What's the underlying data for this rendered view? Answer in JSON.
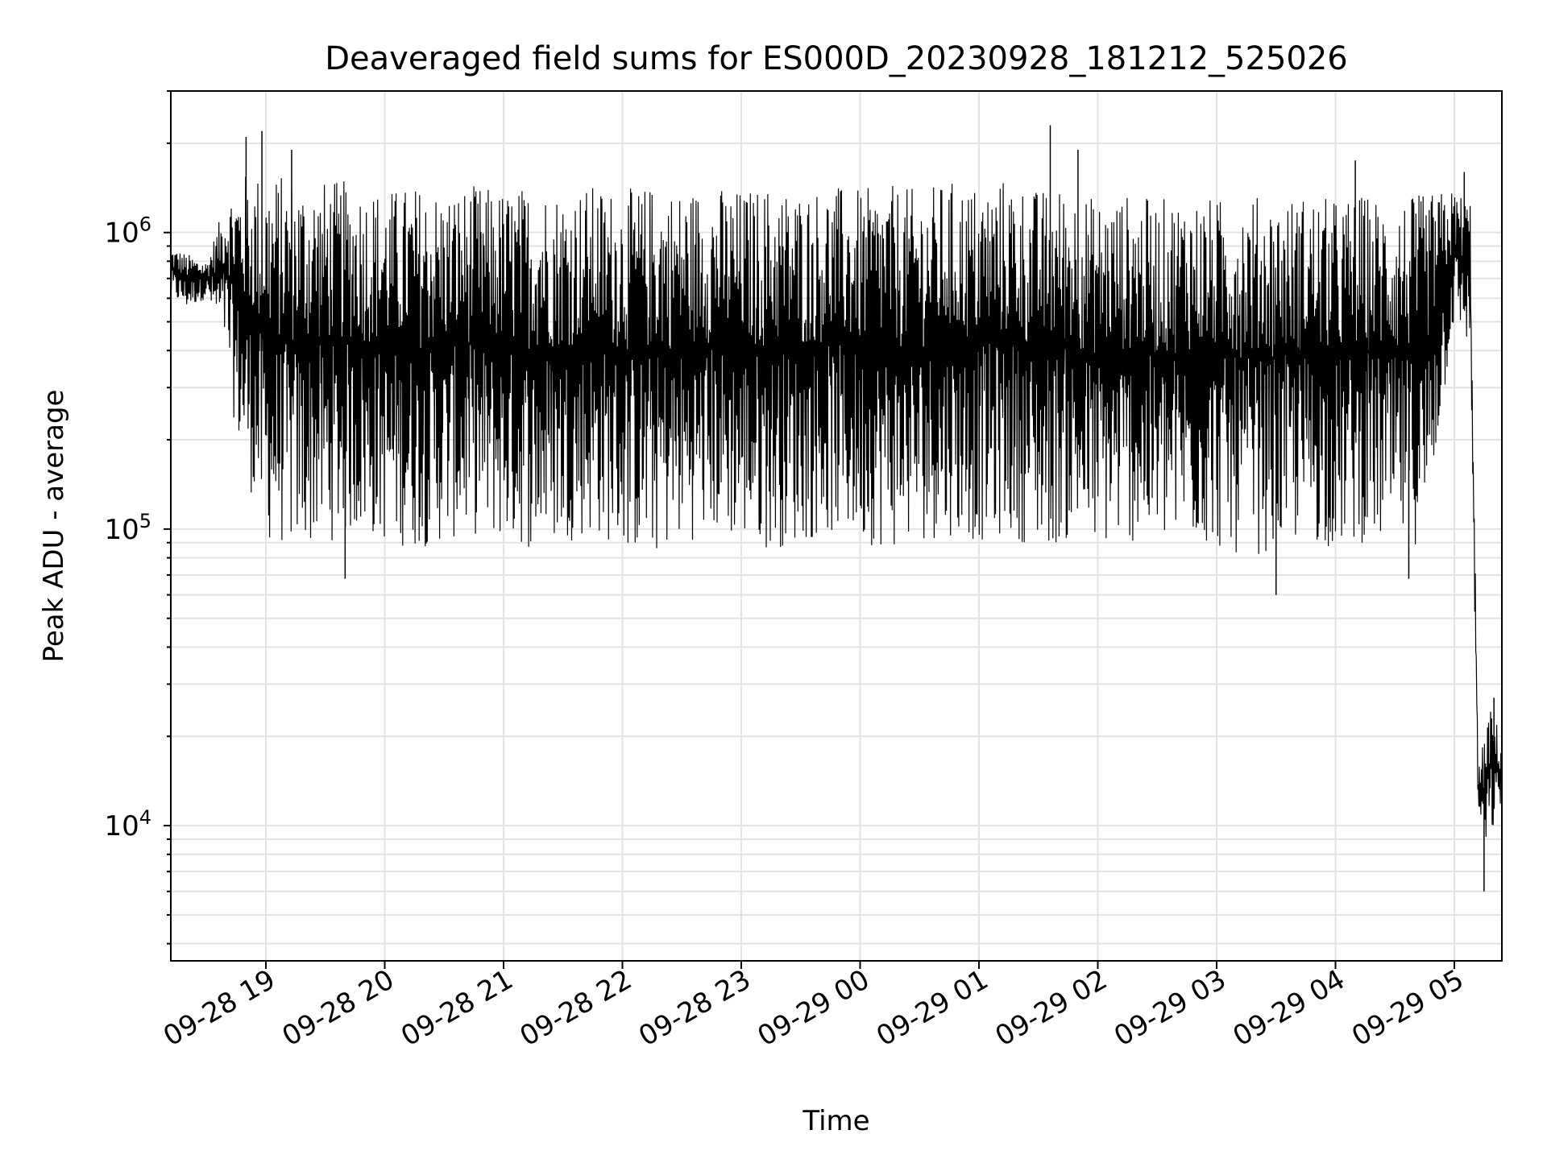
{
  "chart_data": {
    "type": "line",
    "title": "Deaveraged field sums for ES000D_20230928_181212_525026",
    "xlabel": "Time",
    "ylabel": "Peak ADU - average",
    "yscale": "log",
    "ylim": [
      3500,
      3000000
    ],
    "xlim": [
      "2023-09-28 18:12",
      "2023-09-29 05:24"
    ],
    "x_ticks": [
      "09-28 19",
      "09-28 20",
      "09-28 21",
      "09-28 22",
      "09-28 23",
      "09-29 00",
      "09-29 01",
      "09-29 02",
      "09-29 03",
      "09-29 04",
      "09-29 05"
    ],
    "y_ticks": [
      {
        "value": 10000,
        "base": "10",
        "exp": "4"
      },
      {
        "value": 100000,
        "base": "10",
        "exp": "5"
      },
      {
        "value": 1000000,
        "base": "10",
        "exp": "6"
      }
    ],
    "grid": true,
    "line_color": "#000000",
    "series": [
      {
        "x": [
          "2023-09-28 18:12",
          "2023-09-28 18:20",
          "2023-09-28 18:30",
          "2023-09-28 18:40",
          "2023-09-28 18:45",
          "2023-09-28 18:50",
          "2023-09-28 19:00",
          "2023-09-28 19:15",
          "2023-09-28 19:30",
          "2023-09-28 19:45",
          "2023-09-28 20:00",
          "2023-09-28 20:15",
          "2023-09-28 20:30",
          "2023-09-28 20:45",
          "2023-09-28 21:00",
          "2023-09-28 21:15",
          "2023-09-28 21:30",
          "2023-09-28 21:45",
          "2023-09-28 22:00",
          "2023-09-28 22:15",
          "2023-09-28 22:30",
          "2023-09-28 22:45",
          "2023-09-28 23:00",
          "2023-09-28 23:15",
          "2023-09-28 23:30",
          "2023-09-28 23:45",
          "2023-09-29 00:00",
          "2023-09-29 00:15",
          "2023-09-29 00:30",
          "2023-09-29 00:45",
          "2023-09-29 01:00",
          "2023-09-29 01:15",
          "2023-09-29 01:30",
          "2023-09-29 01:45",
          "2023-09-29 02:00",
          "2023-09-29 02:15",
          "2023-09-29 02:30",
          "2023-09-29 02:45",
          "2023-09-29 03:00",
          "2023-09-29 03:15",
          "2023-09-29 03:30",
          "2023-09-29 03:45",
          "2023-09-29 04:00",
          "2023-09-29 04:15",
          "2023-09-29 04:30",
          "2023-09-29 04:45",
          "2023-09-29 05:00",
          "2023-09-29 05:08",
          "2023-09-29 05:12",
          "2023-09-29 05:15",
          "2023-09-29 05:18",
          "2023-09-29 05:21",
          "2023-09-29 05:24"
        ],
        "low": [
          600000,
          550000,
          600000,
          400000,
          200000,
          150000,
          90000,
          85000,
          90000,
          95000,
          90000,
          85000,
          90000,
          95000,
          90000,
          85000,
          90000,
          95000,
          85000,
          80000,
          90000,
          95000,
          90000,
          85000,
          90000,
          95000,
          90000,
          85000,
          90000,
          95000,
          90000,
          95000,
          85000,
          90000,
          85000,
          90000,
          85000,
          90000,
          85000,
          80000,
          85000,
          90000,
          85000,
          90000,
          85000,
          90000,
          500000,
          400000,
          11000,
          8000,
          9000,
          10000,
          12000
        ],
        "high": [
          900000,
          850000,
          800000,
          1300000,
          1500000,
          1600000,
          1600000,
          1550000,
          1500000,
          1500000,
          1400000,
          1450000,
          1400000,
          1450000,
          1400000,
          1450000,
          1400000,
          1450000,
          1400000,
          1450000,
          1400000,
          1450000,
          1400000,
          1450000,
          1400000,
          1450000,
          1400000,
          1450000,
          1400000,
          1500000,
          1450000,
          1550000,
          1400000,
          1450000,
          1300000,
          1350000,
          1300000,
          1350000,
          1300000,
          1350000,
          1300000,
          1350000,
          1300000,
          1350000,
          1300000,
          1350000,
          1400000,
          1300000,
          15000,
          20000,
          25000,
          23000,
          18000
        ],
        "spikes_up": [
          [
            "2023-09-28 18:50",
            2100000
          ],
          [
            "2023-09-28 18:58",
            2200000
          ],
          [
            "2023-09-28 19:13",
            1900000
          ],
          [
            "2023-09-29 01:36",
            2300000
          ],
          [
            "2023-09-29 01:50",
            1900000
          ],
          [
            "2023-09-29 04:10",
            1750000
          ],
          [
            "2023-09-29 05:05",
            1600000
          ],
          [
            "2023-09-29 05:20",
            27000
          ]
        ],
        "spikes_down": [
          [
            "2023-09-28 19:40",
            68000
          ],
          [
            "2023-09-29 03:30",
            60000
          ],
          [
            "2023-09-29 04:37",
            68000
          ],
          [
            "2023-09-29 05:15",
            6000
          ]
        ]
      }
    ]
  }
}
